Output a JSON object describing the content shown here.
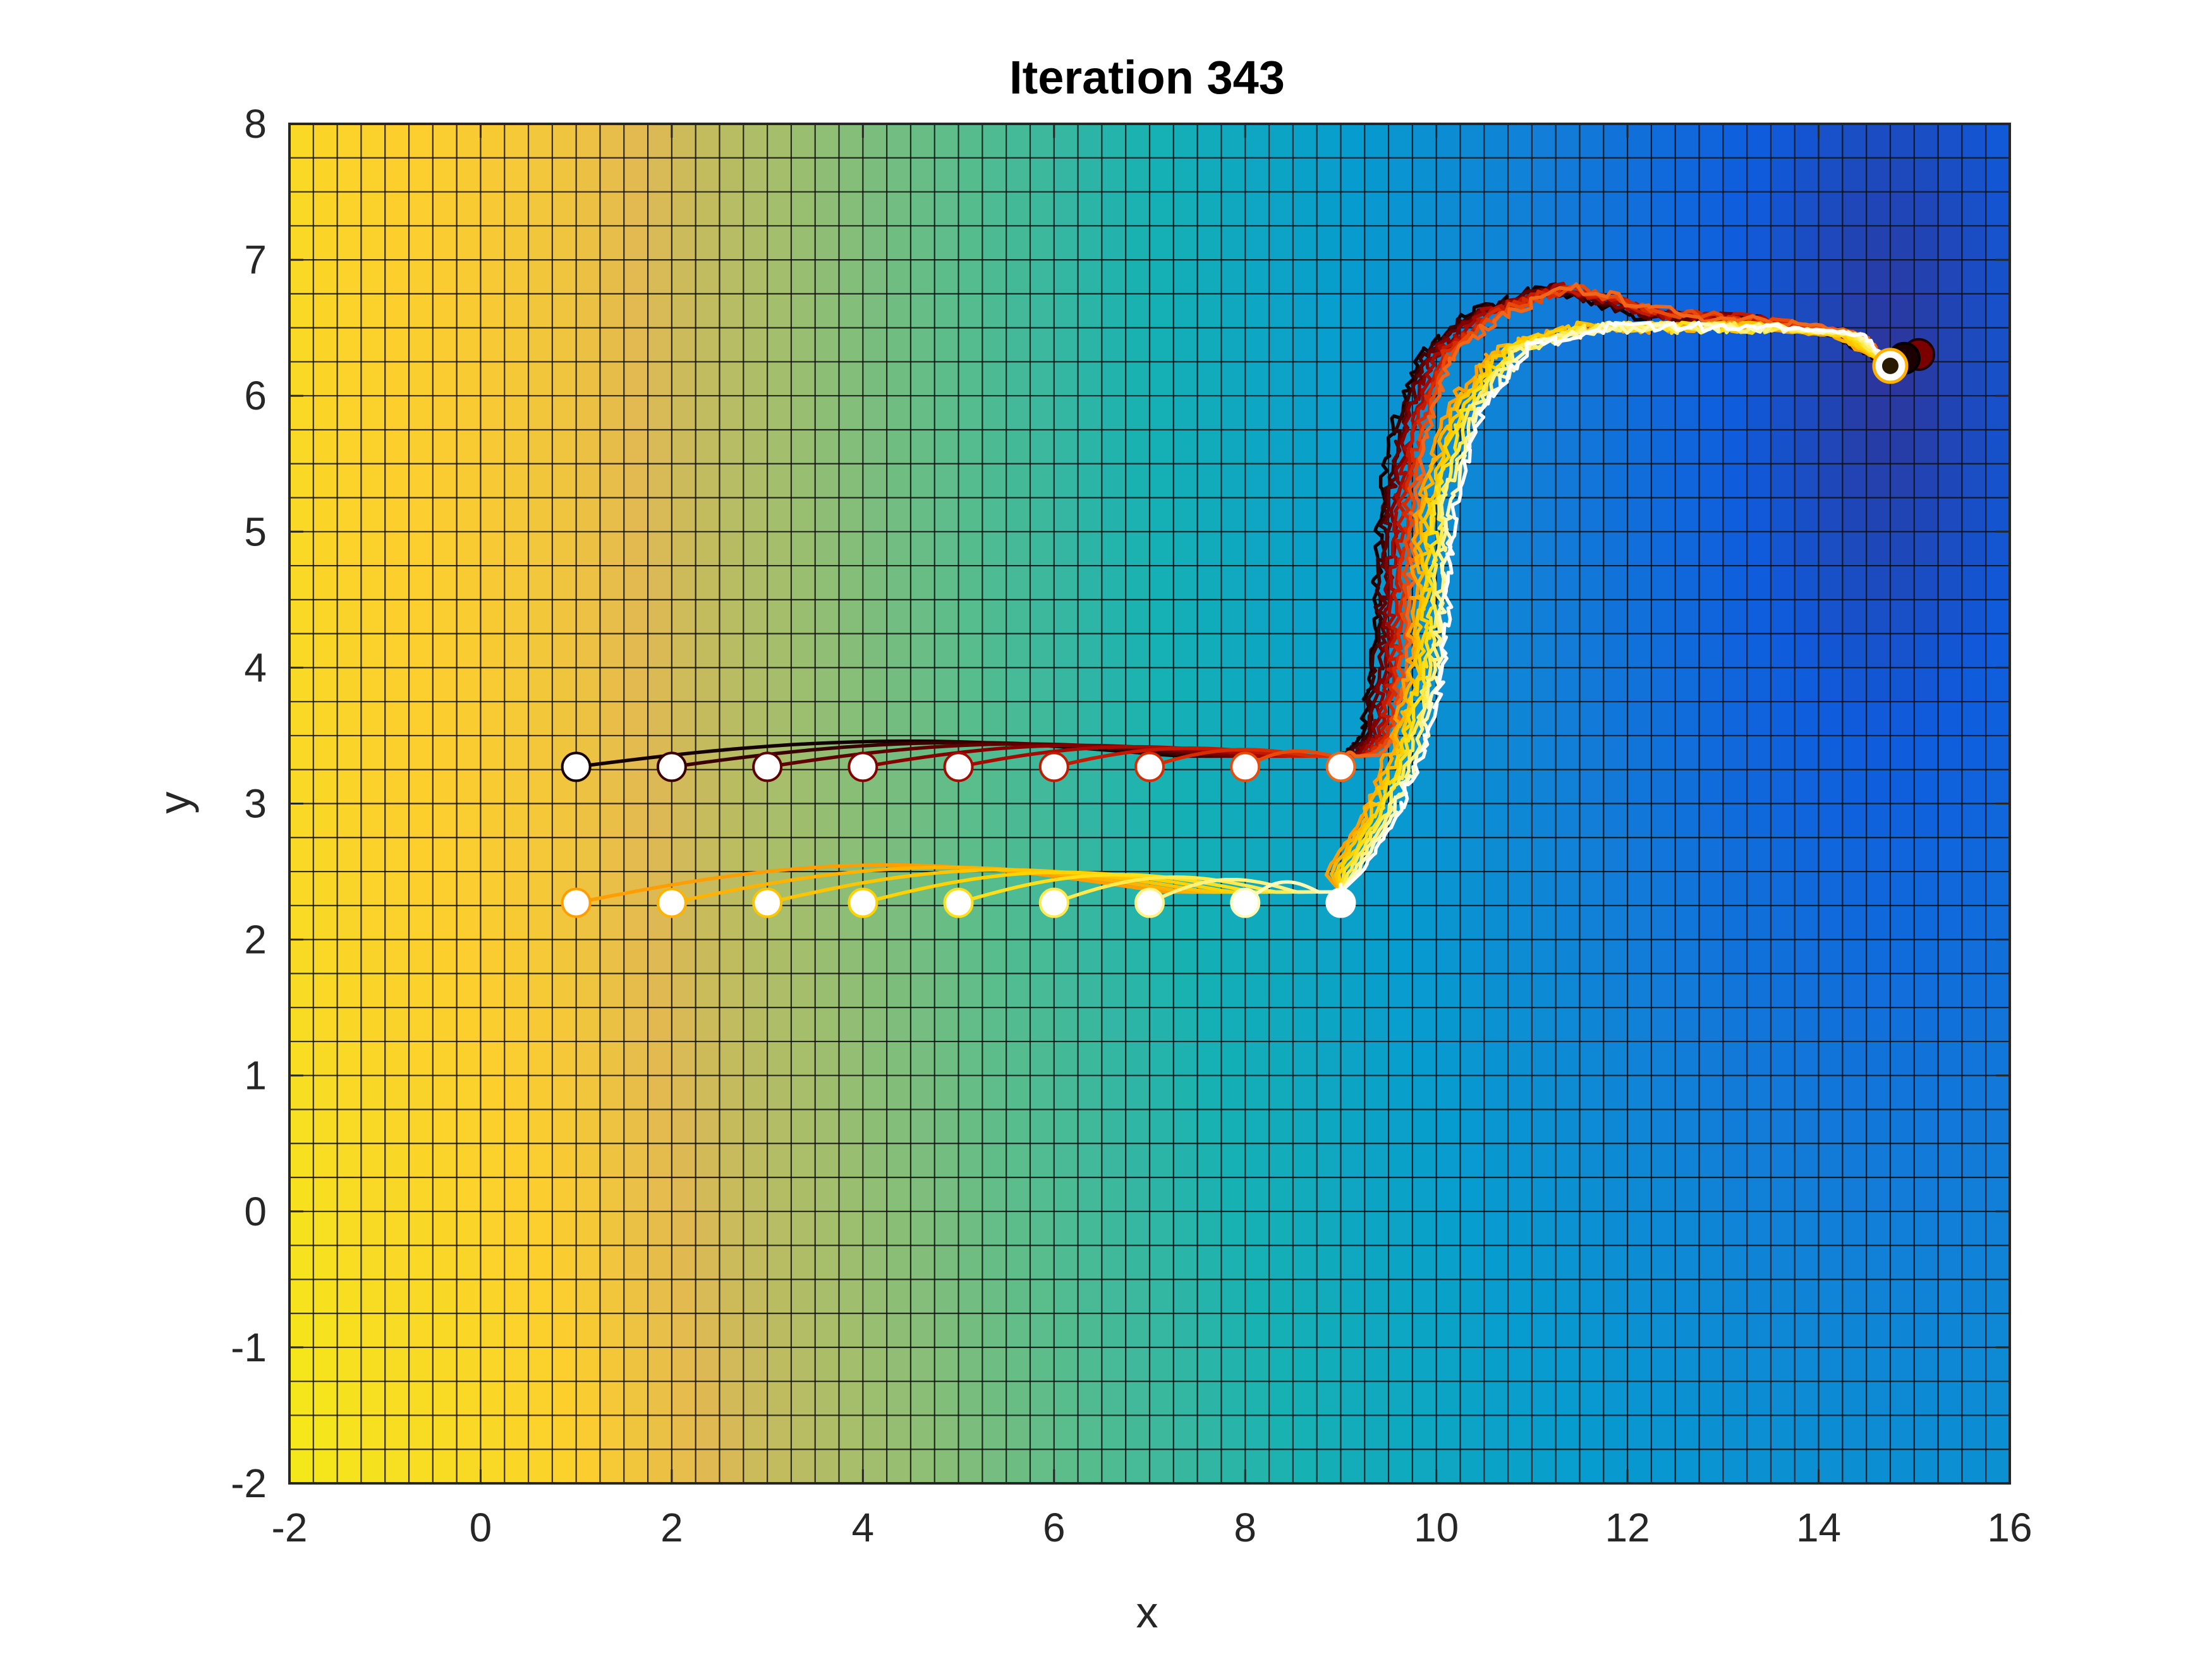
{
  "chart_data": {
    "type": "line",
    "title": "Iteration 343",
    "xlabel": "x",
    "ylabel": "y",
    "xlim": [
      -2,
      16
    ],
    "ylim": [
      -2,
      8
    ],
    "xticks": [
      -2,
      0,
      2,
      4,
      6,
      8,
      10,
      12,
      14,
      16
    ],
    "yticks": [
      -2,
      -1,
      0,
      1,
      2,
      3,
      4,
      5,
      6,
      7,
      8
    ],
    "grid": "on",
    "legend": "none",
    "background": {
      "type": "heatmap",
      "cell_size": 0.25,
      "colormap": "parula",
      "description_free": true
    },
    "target": {
      "x": 14.75,
      "y": 6.22
    },
    "series": [
      {
        "group": "upper",
        "color_scheme": "dark-to-red",
        "starts": [
          [
            1,
            3.27
          ],
          [
            2,
            3.27
          ],
          [
            3,
            3.27
          ],
          [
            4,
            3.27
          ],
          [
            5,
            3.27
          ],
          [
            6,
            3.27
          ],
          [
            7,
            3.27
          ],
          [
            8,
            3.27
          ],
          [
            9,
            3.27
          ]
        ],
        "mean_path": [
          [
            9.2,
            3.35
          ],
          [
            9.4,
            3.5
          ],
          [
            9.5,
            4.0
          ],
          [
            9.55,
            4.6
          ],
          [
            9.6,
            5.2
          ],
          [
            9.75,
            5.8
          ],
          [
            10.0,
            6.3
          ],
          [
            10.5,
            6.6
          ],
          [
            11.3,
            6.8
          ],
          [
            12.3,
            6.6
          ],
          [
            13.5,
            6.55
          ],
          [
            14.3,
            6.45
          ],
          [
            14.75,
            6.22
          ]
        ]
      },
      {
        "group": "lower",
        "color_scheme": "orange-to-white",
        "starts": [
          [
            1,
            2.27
          ],
          [
            2,
            2.27
          ],
          [
            3,
            2.27
          ],
          [
            4,
            2.27
          ],
          [
            5,
            2.27
          ],
          [
            6,
            2.27
          ],
          [
            7,
            2.27
          ],
          [
            8,
            2.27
          ],
          [
            9,
            2.27
          ]
        ],
        "mean_path": [
          [
            9.0,
            2.45
          ],
          [
            9.4,
            2.9
          ],
          [
            9.7,
            3.4
          ],
          [
            9.9,
            4.0
          ],
          [
            9.95,
            4.6
          ],
          [
            10.0,
            5.2
          ],
          [
            10.3,
            5.9
          ],
          [
            10.8,
            6.35
          ],
          [
            11.6,
            6.5
          ],
          [
            12.5,
            6.5
          ],
          [
            13.5,
            6.5
          ],
          [
            14.3,
            6.45
          ],
          [
            14.75,
            6.22
          ]
        ]
      }
    ]
  }
}
